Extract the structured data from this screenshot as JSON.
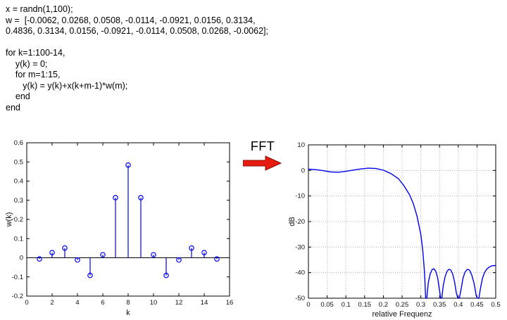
{
  "code": {
    "lines": [
      "x = randn(1,100);",
      "w =  [-0.0062, 0.0268, 0.0508, -0.0114, -0.0921, 0.0156, 0.3134,",
      "0.4836, 0.3134, 0.0156, -0.0921, -0.0114, 0.0508, 0.0268, -0.0062];",
      "",
      "for k=1:100-14,",
      "    y(k) = 0;",
      "    for m=1:15,",
      "       y(k) = y(k)+x(k+m-1)*w(m);",
      "    end",
      "end"
    ]
  },
  "fft": {
    "label": "FFT",
    "arrow_color": "#e81b11",
    "arrow_outline": "#8a0f06"
  },
  "chart_data": [
    {
      "type": "stem",
      "title": "",
      "xlabel": "k",
      "ylabel": "w(k)",
      "xlim": [
        0,
        16
      ],
      "ylim": [
        -0.2,
        0.6
      ],
      "xticks": [
        0,
        2,
        4,
        6,
        8,
        10,
        12,
        14,
        16
      ],
      "xtick_labels": [
        "0",
        "2",
        "4",
        "6",
        "8",
        "10",
        "12",
        "14",
        "16"
      ],
      "yticks": [
        -0.2,
        -0.1,
        0,
        0.1,
        0.2,
        0.3,
        0.4,
        0.5,
        0.6
      ],
      "ytick_labels": [
        "-0.2",
        "-0.1",
        "0",
        "0.1",
        "0.2",
        "0.3",
        "0.4",
        "0.5",
        "0.6"
      ],
      "x": [
        1,
        2,
        3,
        4,
        5,
        6,
        7,
        8,
        9,
        10,
        11,
        12,
        13,
        14,
        15
      ],
      "values": [
        -0.0062,
        0.0268,
        0.0508,
        -0.0114,
        -0.0921,
        0.0156,
        0.3134,
        0.4836,
        0.3134,
        0.0156,
        -0.0921,
        -0.0114,
        0.0508,
        0.0268,
        -0.0062
      ],
      "color": "#0000ee",
      "baseline_color": "#000000",
      "grid": false
    },
    {
      "type": "line",
      "title": "",
      "xlabel": "relative Frequenz",
      "ylabel": "dB",
      "xlim": [
        0,
        0.5
      ],
      "ylim": [
        -50,
        10
      ],
      "xticks": [
        0,
        0.05,
        0.1,
        0.15,
        0.2,
        0.25,
        0.3,
        0.35,
        0.4,
        0.45,
        0.5
      ],
      "xtick_labels": [
        "0",
        "0.05",
        "0.1",
        "0.15",
        "0.2",
        "0.25",
        "0.3",
        "0.35",
        "0.4",
        "0.45",
        "0.5"
      ],
      "yticks": [
        -50,
        -40,
        -30,
        -20,
        -10,
        0,
        10
      ],
      "ytick_labels": [
        "-50",
        "-40",
        "-30",
        "-20",
        "-10",
        "0",
        "10"
      ],
      "points": [
        [
          0,
          0.5
        ],
        [
          0.02,
          0.3
        ],
        [
          0.04,
          -0.1
        ],
        [
          0.06,
          -0.6
        ],
        [
          0.08,
          -0.7
        ],
        [
          0.1,
          -0.35
        ],
        [
          0.12,
          0.15
        ],
        [
          0.14,
          0.6
        ],
        [
          0.16,
          0.9
        ],
        [
          0.18,
          0.75
        ],
        [
          0.2,
          0.1
        ],
        [
          0.22,
          -1.2
        ],
        [
          0.24,
          -3.2
        ],
        [
          0.255,
          -6.0
        ],
        [
          0.27,
          -9.5
        ],
        [
          0.28,
          -13
        ],
        [
          0.29,
          -18
        ],
        [
          0.3,
          -25
        ],
        [
          0.305,
          -31
        ],
        [
          0.31,
          -40
        ],
        [
          0.313,
          -50
        ],
        [
          0.316,
          -50
        ],
        [
          0.32,
          -44
        ],
        [
          0.325,
          -40.5
        ],
        [
          0.33,
          -38.8
        ],
        [
          0.335,
          -38.5
        ],
        [
          0.34,
          -39.5
        ],
        [
          0.345,
          -42
        ],
        [
          0.35,
          -47
        ],
        [
          0.353,
          -50
        ],
        [
          0.356,
          -50
        ],
        [
          0.36,
          -45
        ],
        [
          0.365,
          -41.5
        ],
        [
          0.37,
          -39.5
        ],
        [
          0.375,
          -38.7
        ],
        [
          0.38,
          -39
        ],
        [
          0.385,
          -40.5
        ],
        [
          0.39,
          -43.5
        ],
        [
          0.395,
          -48
        ],
        [
          0.399,
          -50
        ],
        [
          0.403,
          -50
        ],
        [
          0.408,
          -46
        ],
        [
          0.413,
          -42
        ],
        [
          0.418,
          -39.8
        ],
        [
          0.424,
          -38.7
        ],
        [
          0.43,
          -39
        ],
        [
          0.436,
          -41
        ],
        [
          0.442,
          -44
        ],
        [
          0.448,
          -49
        ],
        [
          0.451,
          -50
        ],
        [
          0.455,
          -50
        ],
        [
          0.46,
          -45.5
        ],
        [
          0.465,
          -42
        ],
        [
          0.47,
          -40
        ],
        [
          0.476,
          -38.6
        ],
        [
          0.483,
          -37.8
        ],
        [
          0.49,
          -37.3
        ],
        [
          0.5,
          -37.2
        ]
      ],
      "color": "#0000ee",
      "grid": true,
      "grid_color": "#b4b4b4"
    }
  ]
}
